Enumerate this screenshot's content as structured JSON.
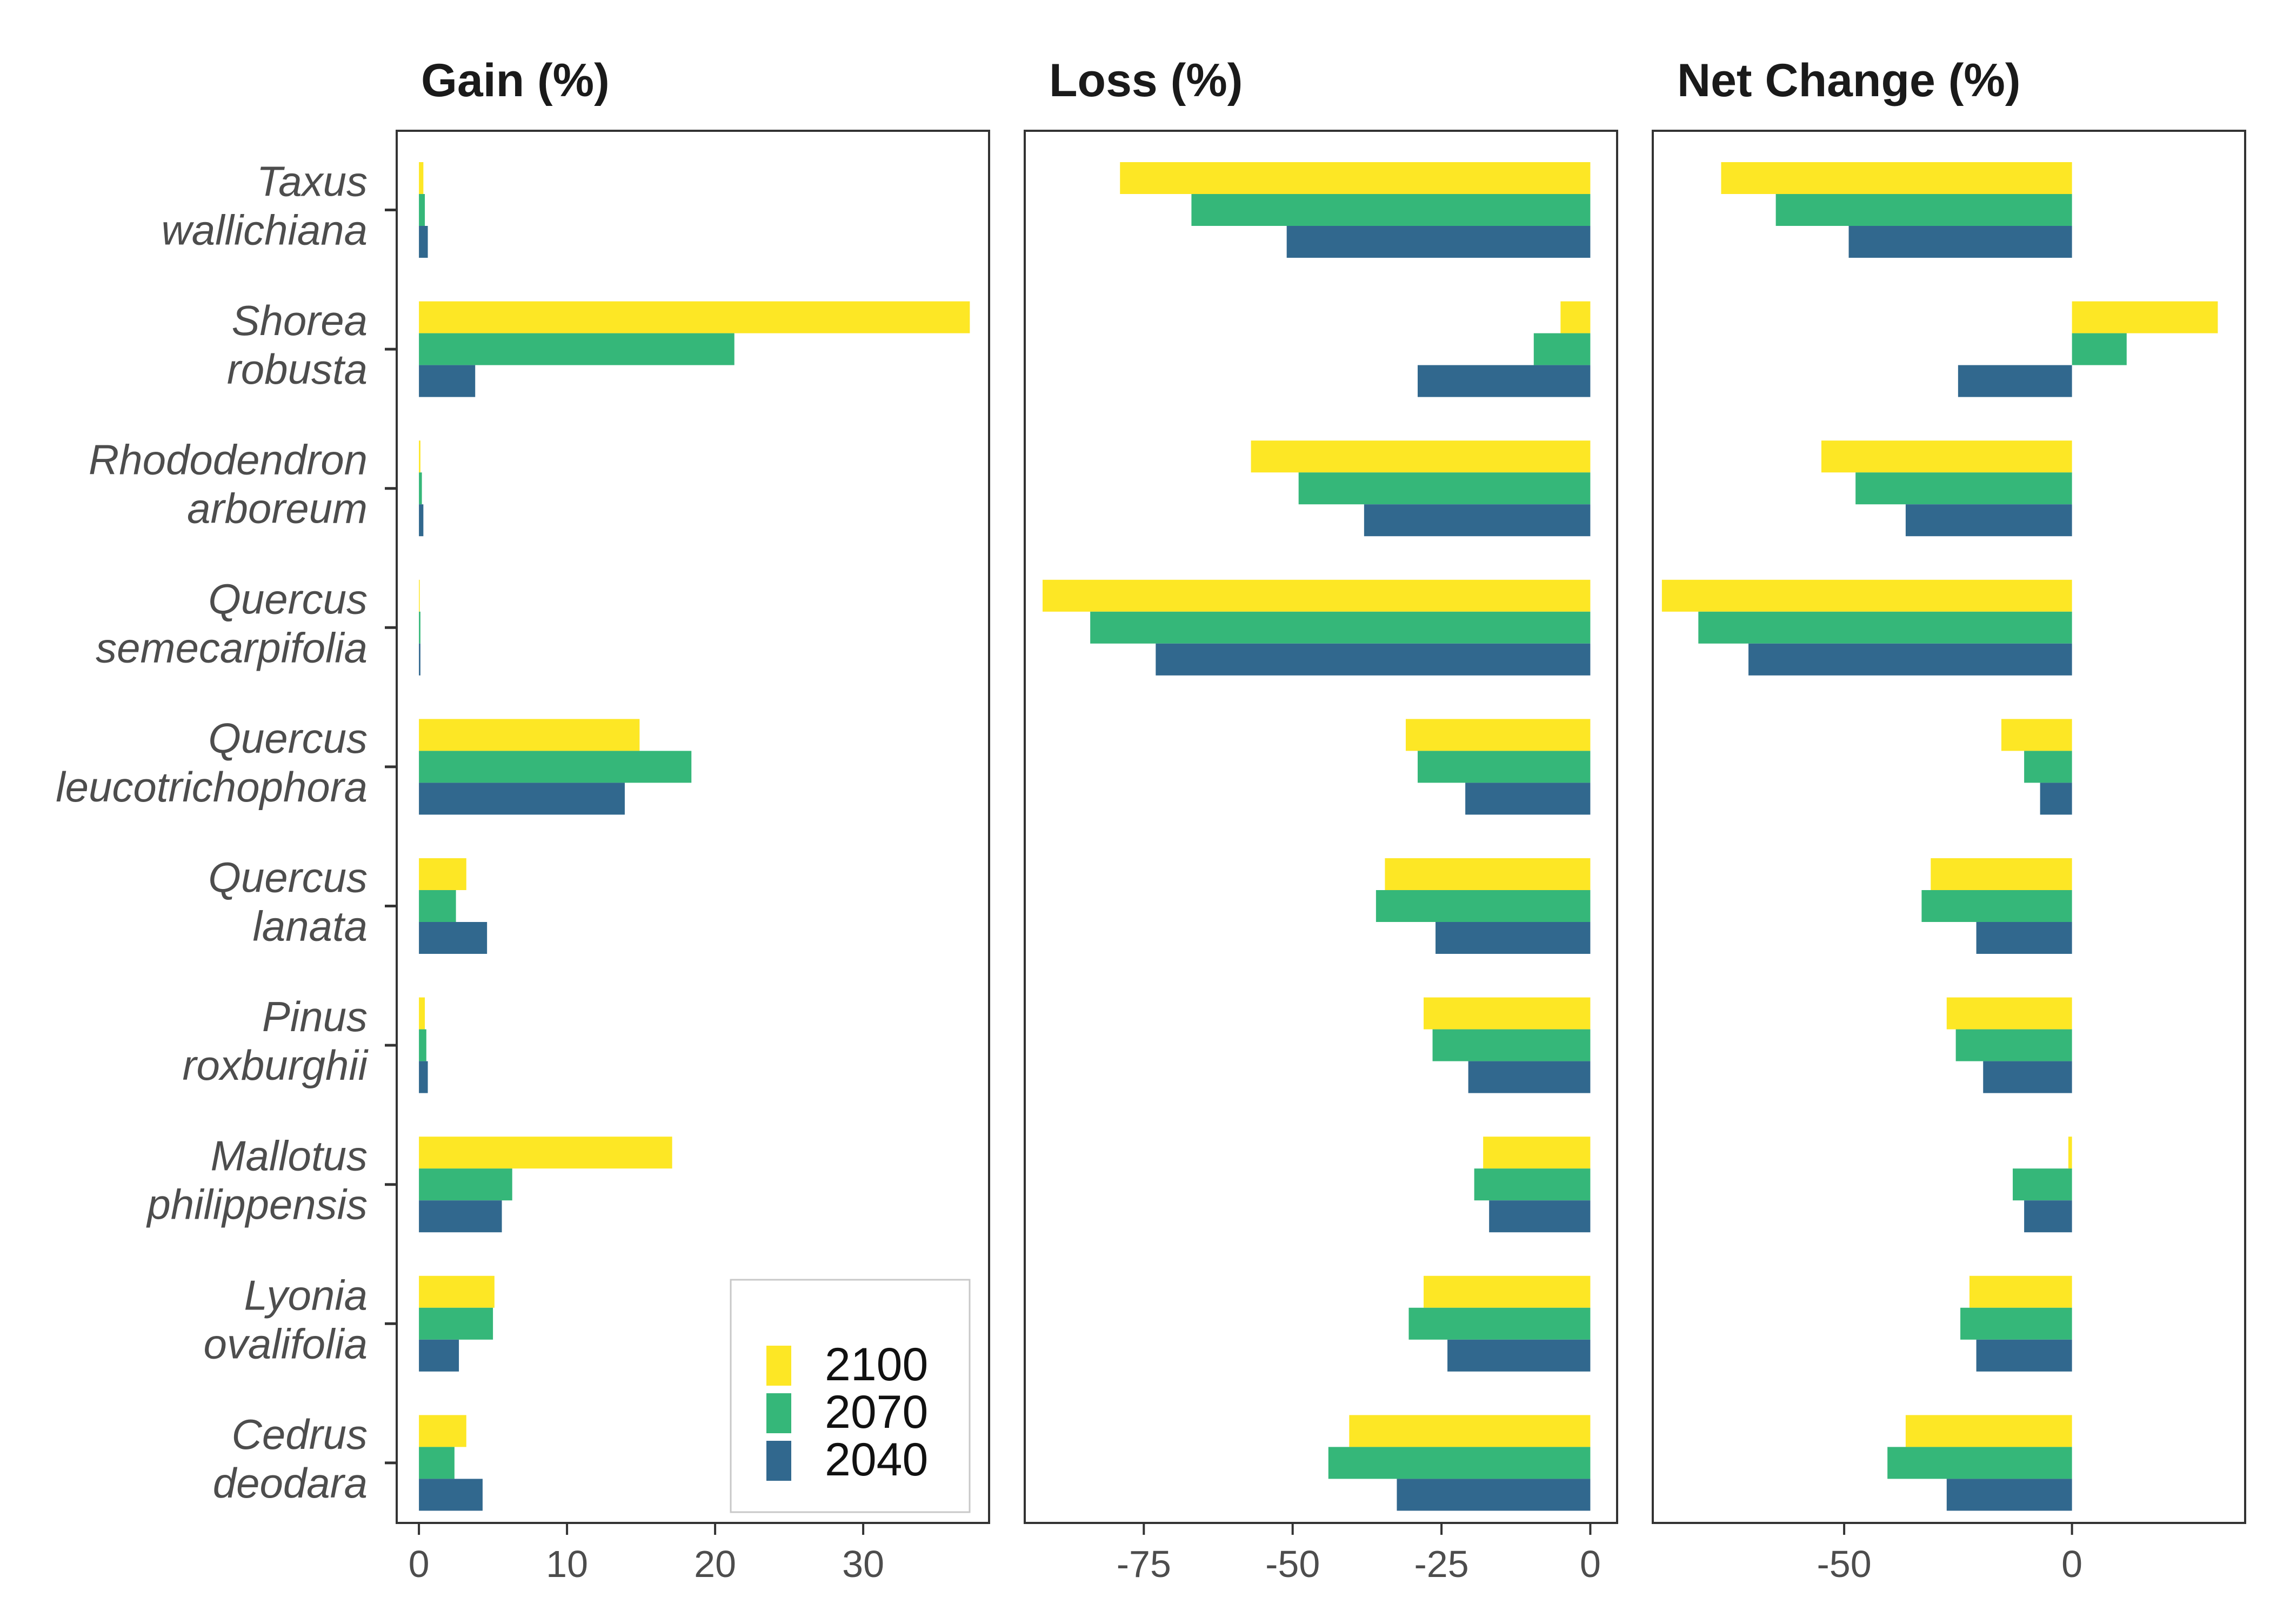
{
  "chart_data": {
    "type": "bar",
    "orientation": "horizontal",
    "categories": [
      [
        "Taxus",
        "wallichiana"
      ],
      [
        "Shorea",
        "robusta"
      ],
      [
        "Rhododendron",
        "arboreum"
      ],
      [
        "Quercus",
        "semecarpifolia"
      ],
      [
        "Quercus",
        "leucotrichophora"
      ],
      [
        "Quercus",
        "lanata"
      ],
      [
        "Pinus",
        "roxburghii"
      ],
      [
        "Mallotus",
        "philippensis"
      ],
      [
        "Lyonia",
        "ovalifolia"
      ],
      [
        "Cedrus",
        "deodara"
      ]
    ],
    "legend": {
      "position": "bottom-right of first panel",
      "entries": [
        {
          "name": "2100",
          "color": "#FDE725"
        },
        {
          "name": "2070",
          "color": "#35B779"
        },
        {
          "name": "2040",
          "color": "#31688E"
        }
      ]
    },
    "panels": [
      {
        "title": "Gain (%)",
        "xlim": [
          -1.5,
          38.5
        ],
        "ticks": [
          0,
          10,
          20,
          30
        ],
        "tick_labels": [
          "0",
          "10",
          "20",
          "30"
        ],
        "series": [
          {
            "name": "2100",
            "color": "#FDE725",
            "values": [
              0.3,
              37.2,
              0.1,
              0.05,
              14.9,
              3.2,
              0.4,
              17.1,
              5.1,
              3.2
            ]
          },
          {
            "name": "2070",
            "color": "#35B779",
            "values": [
              0.4,
              21.3,
              0.2,
              0.1,
              18.4,
              2.5,
              0.5,
              6.3,
              5.0,
              2.4
            ]
          },
          {
            "name": "2040",
            "color": "#31688E",
            "values": [
              0.6,
              3.8,
              0.3,
              0.1,
              13.9,
              4.6,
              0.6,
              5.6,
              2.7,
              4.3
            ]
          }
        ]
      },
      {
        "title": "Loss (%)",
        "xlim": [
          -95,
          4.5
        ],
        "ticks": [
          -75,
          -50,
          -25,
          0
        ],
        "tick_labels": [
          "-75",
          "-50",
          "-25",
          "0"
        ],
        "series": [
          {
            "name": "2100",
            "color": "#FDE725",
            "values": [
              -79,
              -5,
              -57,
              -92,
              -31,
              -34.5,
              -28,
              -18,
              -28,
              -40.5
            ]
          },
          {
            "name": "2070",
            "color": "#35B779",
            "values": [
              -67,
              -9.5,
              -49,
              -84,
              -29,
              -36,
              -26.5,
              -19.5,
              -30.5,
              -44
            ]
          },
          {
            "name": "2040",
            "color": "#31688E",
            "values": [
              -51,
              -29,
              -38,
              -73,
              -21,
              -26,
              -20.5,
              -17,
              -24,
              -32.5
            ]
          }
        ]
      },
      {
        "title": "Net Change (%)",
        "xlim": [
          -92,
          38
        ],
        "ticks": [
          -50,
          0
        ],
        "tick_labels": [
          "-50",
          "0"
        ],
        "series": [
          {
            "name": "2100",
            "color": "#FDE725",
            "values": [
              -77,
              32,
              -55,
              -90,
              -15.5,
              -31,
              -27.5,
              -0.8,
              -22.5,
              -36.5
            ]
          },
          {
            "name": "2070",
            "color": "#35B779",
            "values": [
              -65,
              12,
              -47.5,
              -82,
              -10.5,
              -33,
              -25.5,
              -13,
              -24.5,
              -40.5
            ]
          },
          {
            "name": "2040",
            "color": "#31688E",
            "values": [
              -49,
              -25,
              -36.5,
              -71,
              -7,
              -21,
              -19.5,
              -10.5,
              -21,
              -27.5
            ]
          }
        ]
      }
    ]
  }
}
